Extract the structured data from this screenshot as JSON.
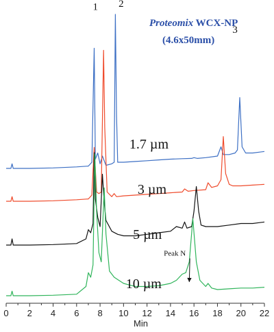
{
  "chart_data": {
    "type": "line",
    "title_brand": "Proteomix",
    "title_rest": " WCX-NP",
    "subtitle": "(4.6x50mm)",
    "xlabel": "Min",
    "ylabel": "",
    "xlim": [
      0,
      22
    ],
    "xticks": [
      "0",
      "2",
      "4",
      "6",
      "8",
      "10",
      "12",
      "14",
      "16",
      "18",
      "20",
      "22"
    ],
    "grid": false,
    "legend": "none",
    "peak_labels": [
      {
        "text": "1",
        "x": 7.6,
        "y": 103
      },
      {
        "text": "2",
        "x": 9.8,
        "y": 105
      },
      {
        "text": "3",
        "x": 19.5,
        "y": 88
      }
    ],
    "annotation": {
      "text": "Peak N",
      "x": 15.3,
      "y": 3,
      "target_x": 15.6,
      "target_y": 8
    },
    "series": [
      {
        "name": "1.7 µm",
        "color": "#3c6fc4",
        "label_at": {
          "x": 10.5,
          "y": 13
        },
        "points": [
          [
            0,
            0
          ],
          [
            0.4,
            0
          ],
          [
            0.5,
            3
          ],
          [
            0.6,
            0
          ],
          [
            2,
            0
          ],
          [
            4,
            0.3
          ],
          [
            6,
            1
          ],
          [
            7,
            1.5
          ],
          [
            7.3,
            4
          ],
          [
            7.5,
            78
          ],
          [
            7.6,
            6
          ],
          [
            7.8,
            10
          ],
          [
            8.0,
            3
          ],
          [
            8.2,
            8
          ],
          [
            8.5,
            2
          ],
          [
            9.0,
            3
          ],
          [
            9.2,
            4
          ],
          [
            9.3,
            100
          ],
          [
            9.4,
            35
          ],
          [
            9.5,
            4
          ],
          [
            10,
            4
          ],
          [
            11,
            4.5
          ],
          [
            12,
            5
          ],
          [
            13,
            5.5
          ],
          [
            14,
            6
          ],
          [
            15,
            6.3
          ],
          [
            15.8,
            6.5
          ],
          [
            16,
            7
          ],
          [
            16.3,
            6.5
          ],
          [
            17,
            7
          ],
          [
            18,
            8
          ],
          [
            18.3,
            14
          ],
          [
            18.5,
            9
          ],
          [
            19,
            9
          ],
          [
            19.5,
            10
          ],
          [
            19.7,
            12
          ],
          [
            19.9,
            46
          ],
          [
            20.1,
            14
          ],
          [
            20.4,
            10
          ],
          [
            21,
            10
          ],
          [
            22,
            11
          ]
        ]
      },
      {
        "name": "3 µm",
        "color": "#ef4a2b",
        "label_at": {
          "x": 11.2,
          "y": 5
        },
        "points": [
          [
            0,
            0
          ],
          [
            0.4,
            0
          ],
          [
            0.5,
            3
          ],
          [
            0.6,
            0
          ],
          [
            2,
            0
          ],
          [
            4,
            0.3
          ],
          [
            6,
            1
          ],
          [
            7,
            1.5
          ],
          [
            7.3,
            4
          ],
          [
            7.5,
            35
          ],
          [
            7.7,
            6
          ],
          [
            7.9,
            5
          ],
          [
            8.1,
            6
          ],
          [
            8.3,
            98
          ],
          [
            8.4,
            48
          ],
          [
            8.6,
            6
          ],
          [
            9.0,
            3
          ],
          [
            9.2,
            5
          ],
          [
            9.4,
            3
          ],
          [
            10,
            3.5
          ],
          [
            11,
            4
          ],
          [
            12,
            4.5
          ],
          [
            13,
            5
          ],
          [
            14,
            5.5
          ],
          [
            15,
            6
          ],
          [
            15.2,
            8
          ],
          [
            15.5,
            6.5
          ],
          [
            16,
            7
          ],
          [
            17,
            7.5
          ],
          [
            17.2,
            12
          ],
          [
            17.5,
            9
          ],
          [
            18,
            10
          ],
          [
            18.3,
            14
          ],
          [
            18.5,
            42
          ],
          [
            18.7,
            18
          ],
          [
            19,
            11
          ],
          [
            19.3,
            10
          ],
          [
            20,
            10
          ],
          [
            21,
            10.5
          ],
          [
            22,
            11
          ]
        ]
      },
      {
        "name": "5 µm",
        "color": "#111111",
        "label_at": {
          "x": 10.8,
          "y": 4
        },
        "points": [
          [
            0,
            0
          ],
          [
            0.4,
            0
          ],
          [
            0.5,
            4
          ],
          [
            0.6,
            0
          ],
          [
            2,
            0
          ],
          [
            4,
            0.3
          ],
          [
            6,
            1
          ],
          [
            6.8,
            4
          ],
          [
            7.0,
            10
          ],
          [
            7.2,
            8
          ],
          [
            7.4,
            14
          ],
          [
            7.5,
            60
          ],
          [
            7.6,
            30
          ],
          [
            7.8,
            18
          ],
          [
            8.0,
            12
          ],
          [
            8.2,
            46
          ],
          [
            8.35,
            28
          ],
          [
            8.5,
            16
          ],
          [
            9,
            9
          ],
          [
            9.5,
            7
          ],
          [
            10,
            6
          ],
          [
            11,
            6
          ],
          [
            12,
            7
          ],
          [
            13,
            8
          ],
          [
            14,
            9
          ],
          [
            14.5,
            12
          ],
          [
            15,
            11
          ],
          [
            15.2,
            15
          ],
          [
            15.4,
            11
          ],
          [
            15.8,
            12
          ],
          [
            16,
            22
          ],
          [
            16.2,
            38
          ],
          [
            16.4,
            22
          ],
          [
            16.6,
            13
          ],
          [
            17,
            12
          ],
          [
            18,
            12
          ],
          [
            19,
            13
          ],
          [
            20,
            14
          ],
          [
            21,
            14
          ],
          [
            22,
            15
          ]
        ]
      },
      {
        "name": "10 µm",
        "color": "#2fb45a",
        "label_at": {
          "x": 10.2,
          "y": 5
        },
        "points": [
          [
            0,
            0
          ],
          [
            0.4,
            0
          ],
          [
            0.5,
            3
          ],
          [
            0.6,
            0
          ],
          [
            2,
            0
          ],
          [
            4,
            0.3
          ],
          [
            6,
            1
          ],
          [
            6.8,
            6
          ],
          [
            7.0,
            15
          ],
          [
            7.2,
            12
          ],
          [
            7.4,
            20
          ],
          [
            7.55,
            92
          ],
          [
            7.7,
            55
          ],
          [
            7.9,
            28
          ],
          [
            8.1,
            22
          ],
          [
            8.35,
            70
          ],
          [
            8.5,
            40
          ],
          [
            8.8,
            16
          ],
          [
            9.2,
            12
          ],
          [
            9.6,
            10
          ],
          [
            10,
            8
          ],
          [
            10.5,
            7
          ],
          [
            11,
            6
          ],
          [
            12,
            6
          ],
          [
            13,
            6.5
          ],
          [
            14,
            8
          ],
          [
            14.5,
            10
          ],
          [
            15,
            14
          ],
          [
            15.3,
            15
          ],
          [
            15.6,
            22
          ],
          [
            15.9,
            50
          ],
          [
            16.2,
            22
          ],
          [
            16.5,
            10
          ],
          [
            17,
            6
          ],
          [
            17.2,
            8
          ],
          [
            17.5,
            5
          ],
          [
            18,
            4
          ],
          [
            19,
            4.5
          ],
          [
            20,
            5
          ],
          [
            21,
            5
          ],
          [
            22,
            5.5
          ]
        ]
      }
    ]
  }
}
